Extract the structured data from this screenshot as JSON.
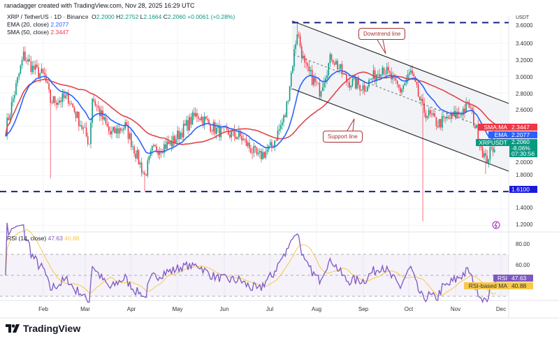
{
  "credit": "ranadagger created with TradingView.com, Nov 28, 2025 16:29 UTC",
  "legend": {
    "symbol": "XRP / TetherUS · 1D · Binance",
    "o_label": "O",
    "o": "2.2000",
    "h_label": "H",
    "h": "2.2752",
    "l_label": "L",
    "l": "2.1664",
    "c_label": "C",
    "c": "2.2060",
    "change": "+0.0061 (+0.28%)",
    "ema": "EMA (20, close)",
    "ema_val": "2.2077",
    "sma": "SMA (50, close)",
    "sma_val": "2.3447"
  },
  "rsi_legend": {
    "title": "RSI (14, close)",
    "rsi": "47.63",
    "ma": "40.88"
  },
  "annotations": {
    "downtrend": "Downtrend line",
    "support": "Support line"
  },
  "price_axis": {
    "currency": "USDT",
    "ticks": [
      "3.6000",
      "3.4000",
      "3.2000",
      "3.0000",
      "2.8000",
      "2.6000",
      "2.0000",
      "1.8000",
      "1.4000",
      "1.2000"
    ]
  },
  "price_labels": {
    "sma_name": "SMA:MA",
    "sma": "2.3447",
    "ema_name": "EMA",
    "ema": "2.2077",
    "sym": "XRPUSDT",
    "last": "2.2060",
    "pct": "-8.06%",
    "countdown": "07:30:56",
    "level": "1.6100"
  },
  "rsi_axis": {
    "ticks": [
      "80.00",
      "60.00"
    ],
    "rsi_name": "RSI",
    "rsi": "47.63",
    "ma_name": "RSI-based MA",
    "ma": "40.88"
  },
  "time_axis": [
    "Feb",
    "Mar",
    "Apr",
    "May",
    "Jun",
    "Jul",
    "Aug",
    "Sep",
    "Oct",
    "Nov",
    "Dec"
  ],
  "brand": "TradingView",
  "colors": {
    "up": "#089981",
    "down": "#f23645",
    "ema": "#2962ff",
    "sma": "#e0454b",
    "rsi": "#7e57c2",
    "rsi_ma": "#f7c948",
    "level": "#1a237e"
  },
  "chart_data": {
    "type": "candlestick",
    "symbol": "XRPUSDT",
    "interval": "1D",
    "ylim": [
      1.1,
      3.75
    ],
    "close_path": [
      [
        "2025-01-04",
        2.36
      ],
      [
        "2025-01-16",
        3.25
      ],
      [
        "2025-01-22",
        3.1
      ],
      [
        "2025-01-30",
        3.0
      ],
      [
        "2025-02-03",
        2.7
      ],
      [
        "2025-02-15",
        2.74
      ],
      [
        "2025-03-01",
        2.2
      ],
      [
        "2025-03-03",
        2.75
      ],
      [
        "2025-03-15",
        2.3
      ],
      [
        "2025-03-25",
        2.4
      ],
      [
        "2025-04-07",
        1.8
      ],
      [
        "2025-04-12",
        2.1
      ],
      [
        "2025-04-25",
        2.2
      ],
      [
        "2025-05-12",
        2.55
      ],
      [
        "2025-05-25",
        2.35
      ],
      [
        "2025-06-10",
        2.27
      ],
      [
        "2025-06-22",
        2.02
      ],
      [
        "2025-07-01",
        2.15
      ],
      [
        "2025-07-10",
        2.53
      ],
      [
        "2025-07-18",
        3.55
      ],
      [
        "2025-07-23",
        3.12
      ],
      [
        "2025-08-02",
        2.83
      ],
      [
        "2025-08-10",
        3.25
      ],
      [
        "2025-08-20",
        2.95
      ],
      [
        "2025-09-01",
        2.87
      ],
      [
        "2025-09-13",
        3.12
      ],
      [
        "2025-09-25",
        2.83
      ],
      [
        "2025-10-02",
        3.05
      ],
      [
        "2025-10-10",
        2.6
      ],
      [
        "2025-10-20",
        2.43
      ],
      [
        "2025-11-01",
        2.53
      ],
      [
        "2025-11-10",
        2.65
      ],
      [
        "2025-11-21",
        1.98
      ],
      [
        "2025-11-28",
        2.206
      ]
    ],
    "notable_lows": [
      [
        "2025-02-03",
        1.77
      ],
      [
        "2025-04-07",
        1.61
      ],
      [
        "2025-10-10",
        1.25
      ],
      [
        "2025-11-21",
        1.82
      ]
    ],
    "last_candle": {
      "open": 2.2,
      "high": 2.2752,
      "low": 2.1664,
      "close": 2.206
    },
    "horizontal_levels": [
      3.65,
      1.61
    ],
    "indicators": {
      "ema20": 2.2077,
      "sma50": 2.3447,
      "rsi14": 47.63,
      "rsi_ma": 40.88
    },
    "rsi_levels": [
      70,
      50,
      30
    ]
  }
}
